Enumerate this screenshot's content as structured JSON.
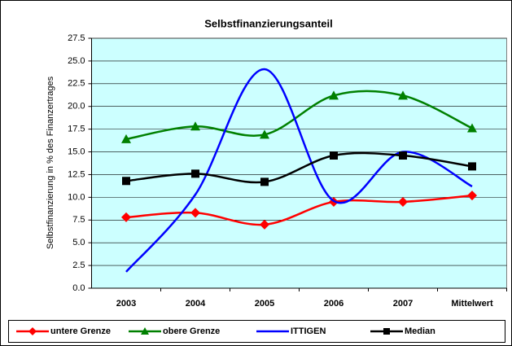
{
  "chart_data": {
    "type": "line",
    "title": "Selbstfinanzierungsanteil",
    "y_label": "Selbstfinanzierung in % des Finanzertrages",
    "categories": [
      "2003",
      "2004",
      "2005",
      "2006",
      "2007",
      "Mittelwert"
    ],
    "series": [
      {
        "name": "untere Grenze",
        "color": "#ff0000",
        "marker": "diamond",
        "values": [
          7.8,
          8.3,
          7.0,
          9.5,
          9.5,
          10.2
        ]
      },
      {
        "name": "obere Grenze",
        "color": "#008000",
        "marker": "triangle",
        "values": [
          16.4,
          17.8,
          16.9,
          21.2,
          21.2,
          17.6
        ]
      },
      {
        "name": "ITTIGEN",
        "color": "#0000ff",
        "marker": "none",
        "values": [
          1.8,
          10.3,
          24.1,
          9.6,
          15.0,
          11.2
        ]
      },
      {
        "name": "Median",
        "color": "#000000",
        "marker": "square",
        "values": [
          11.8,
          12.6,
          11.7,
          14.6,
          14.6,
          13.4
        ]
      }
    ],
    "ylim": [
      0,
      27.5
    ],
    "yticks": [
      {
        "value": 0,
        "label": "0.0"
      },
      2.5,
      {
        "value": 5,
        "label": "5.0"
      },
      7.5,
      {
        "value": 10,
        "label": "10.0"
      },
      12.5,
      {
        "value": 15,
        "label": "15.0"
      },
      17.5,
      {
        "value": 20,
        "label": "20.0"
      },
      22.5,
      {
        "value": 25,
        "label": "25.0"
      },
      27.5
    ],
    "grid": true,
    "smooth": true,
    "plot_background": "#ccffff",
    "legend": "bottom"
  }
}
